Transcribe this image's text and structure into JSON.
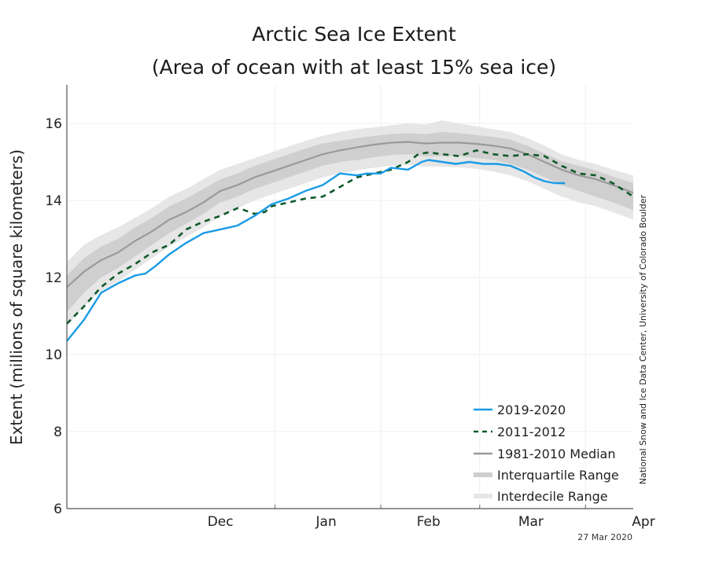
{
  "chart_data": {
    "type": "line",
    "title": "Arctic Sea Ice Extent",
    "subtitle": "(Area of ocean with at least 15% sea ice)",
    "xlabel": "",
    "ylabel": "Extent (millions of square kilometers)",
    "ylim": [
      6,
      17
    ],
    "yticks": [
      6,
      8,
      10,
      12,
      14,
      16
    ],
    "xlim_days": [
      0,
      166
    ],
    "x_unit": "days since Nov 1",
    "xticks": [
      {
        "label": "Dec",
        "day": 30
      },
      {
        "label": "Jan",
        "day": 91
      },
      {
        "label": "Feb",
        "day": 122
      },
      {
        "label": "Mar",
        "day": 151
      },
      {
        "label": "Apr",
        "day": 182
      }
    ],
    "month_boundaries_days": [
      30,
      61,
      92,
      121,
      152
    ],
    "grid": true,
    "legend_position": "bottom-right",
    "credit": "National Snow and Ice Data Center, University of Colorado Boulder",
    "date_stamp": "27 Mar 2020",
    "colors": {
      "series_2019_2020": "#1a9be6",
      "series_2011_2012": "#0e5a2a",
      "median": "#9a9a9a",
      "interquartile": "#cfcfcf",
      "interdecile": "#e6e6e6"
    },
    "legend": [
      {
        "label": "2019-2020",
        "style": "solid-blue"
      },
      {
        "label": "2011-2012",
        "style": "dashed-green"
      },
      {
        "label": "1981-2010 Median",
        "style": "solid-gray"
      },
      {
        "label": "Interquartile Range",
        "style": "band-mid"
      },
      {
        "label": "Interdecile Range",
        "style": "band-light"
      }
    ],
    "x": [
      0,
      5,
      10,
      15,
      20,
      25,
      30,
      35,
      40,
      45,
      50,
      55,
      60,
      65,
      70,
      75,
      80,
      85,
      90,
      95,
      100,
      105,
      110,
      115,
      120,
      125,
      130,
      135,
      140,
      145,
      150,
      155,
      160,
      166
    ],
    "series": [
      {
        "name": "1981-2010 Median",
        "values": [
          11.75,
          12.15,
          12.45,
          12.65,
          12.95,
          13.2,
          13.5,
          13.7,
          13.95,
          14.25,
          14.4,
          14.6,
          14.75,
          14.9,
          15.05,
          15.2,
          15.3,
          15.38,
          15.45,
          15.5,
          15.52,
          15.48,
          15.5,
          15.5,
          15.47,
          15.42,
          15.35,
          15.2,
          15.0,
          14.8,
          14.65,
          14.55,
          14.4,
          14.2
        ]
      },
      {
        "name": "Interquartile Range (low)",
        "values": [
          11.1,
          11.6,
          12.0,
          12.25,
          12.55,
          12.85,
          13.15,
          13.4,
          13.65,
          13.95,
          14.1,
          14.3,
          14.45,
          14.6,
          14.75,
          14.9,
          15.0,
          15.05,
          15.12,
          15.18,
          15.2,
          15.15,
          15.15,
          15.15,
          15.1,
          15.05,
          14.95,
          14.8,
          14.6,
          14.4,
          14.25,
          14.1,
          13.95,
          13.75
        ]
      },
      {
        "name": "Interquartile Range (high)",
        "values": [
          12.05,
          12.5,
          12.8,
          13.0,
          13.3,
          13.55,
          13.85,
          14.05,
          14.3,
          14.55,
          14.7,
          14.9,
          15.05,
          15.2,
          15.35,
          15.48,
          15.55,
          15.62,
          15.68,
          15.72,
          15.75,
          15.72,
          15.78,
          15.75,
          15.7,
          15.65,
          15.58,
          15.42,
          15.22,
          15.02,
          14.9,
          14.78,
          14.62,
          14.45
        ]
      },
      {
        "name": "Interdecile Range (low)",
        "values": [
          10.75,
          11.25,
          11.65,
          11.9,
          12.2,
          12.5,
          12.8,
          13.05,
          13.3,
          13.6,
          13.8,
          14.0,
          14.15,
          14.3,
          14.45,
          14.6,
          14.7,
          14.78,
          14.85,
          14.9,
          14.92,
          14.88,
          14.88,
          14.86,
          14.82,
          14.75,
          14.65,
          14.5,
          14.3,
          14.1,
          13.95,
          13.85,
          13.7,
          13.5
        ]
      },
      {
        "name": "Interdecile Range (high)",
        "values": [
          12.4,
          12.85,
          13.1,
          13.3,
          13.55,
          13.8,
          14.1,
          14.3,
          14.55,
          14.8,
          14.95,
          15.1,
          15.25,
          15.4,
          15.55,
          15.68,
          15.78,
          15.85,
          15.9,
          15.95,
          16.0,
          15.97,
          16.08,
          16.0,
          15.92,
          15.85,
          15.78,
          15.62,
          15.42,
          15.2,
          15.05,
          14.95,
          14.8,
          14.65
        ]
      },
      {
        "name": "2019-2020",
        "x": [
          0,
          5,
          10,
          12,
          15,
          20,
          23,
          26,
          30,
          35,
          40,
          45,
          50,
          55,
          60,
          65,
          70,
          75,
          80,
          85,
          88,
          92,
          95,
          100,
          104,
          106,
          110,
          114,
          118,
          122,
          126,
          130,
          134,
          137,
          140,
          143,
          146
        ],
        "values": [
          10.35,
          10.9,
          11.6,
          11.7,
          11.85,
          12.05,
          12.1,
          12.3,
          12.6,
          12.9,
          13.15,
          13.25,
          13.35,
          13.6,
          13.9,
          14.05,
          14.25,
          14.4,
          14.7,
          14.65,
          14.7,
          14.7,
          14.85,
          14.8,
          15.0,
          15.05,
          15.0,
          14.95,
          15.0,
          14.95,
          14.95,
          14.9,
          14.75,
          14.6,
          14.5,
          14.45,
          14.45
        ]
      },
      {
        "name": "2011-2012",
        "x": [
          0,
          5,
          10,
          15,
          20,
          25,
          30,
          35,
          40,
          45,
          50,
          52,
          55,
          58,
          60,
          65,
          70,
          75,
          80,
          85,
          90,
          95,
          100,
          103,
          106,
          110,
          115,
          120,
          125,
          130,
          135,
          140,
          145,
          150,
          155,
          160,
          166
        ],
        "values": [
          10.8,
          11.25,
          11.75,
          12.1,
          12.35,
          12.65,
          12.85,
          13.25,
          13.45,
          13.6,
          13.8,
          13.75,
          13.65,
          13.7,
          13.85,
          13.95,
          14.05,
          14.1,
          14.35,
          14.6,
          14.7,
          14.8,
          15.0,
          15.2,
          15.25,
          15.2,
          15.15,
          15.3,
          15.2,
          15.15,
          15.2,
          15.15,
          14.9,
          14.7,
          14.65,
          14.45,
          14.1
        ]
      }
    ]
  }
}
